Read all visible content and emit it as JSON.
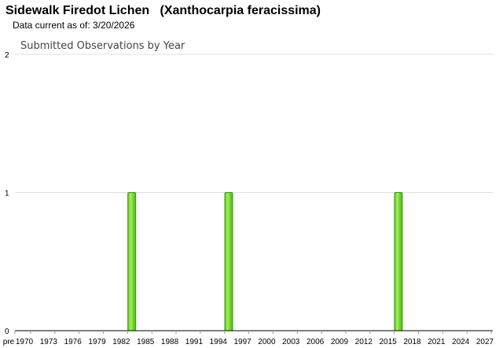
{
  "header": {
    "title": "Sidewalk Firedot Lichen   (Xanthocarpia feracissima)",
    "data_current": "Data current as of: 3/20/2026"
  },
  "chart_data": {
    "type": "bar",
    "title": "Submitted Observations by Year",
    "xlabel": "",
    "ylabel": "",
    "x_tick_labels": [
      "pre",
      "1970",
      "1973",
      "1976",
      "1979",
      "1982",
      "1985",
      "1988",
      "1991",
      "1994",
      "1997",
      "2000",
      "2003",
      "2006",
      "2009",
      "2012",
      "2015",
      "2018",
      "2021",
      "2024",
      "2027"
    ],
    "x_range": [
      1970,
      2027
    ],
    "ylim": [
      0,
      2
    ],
    "y_ticks": [
      0,
      1,
      2
    ],
    "grid": true,
    "bar_color": "#66cc22",
    "bar_edge_color": "#3a9a0a",
    "bars": [
      {
        "year": 1983,
        "value": 1
      },
      {
        "year": 1995,
        "value": 1
      },
      {
        "year": 2016,
        "value": 1
      }
    ]
  }
}
